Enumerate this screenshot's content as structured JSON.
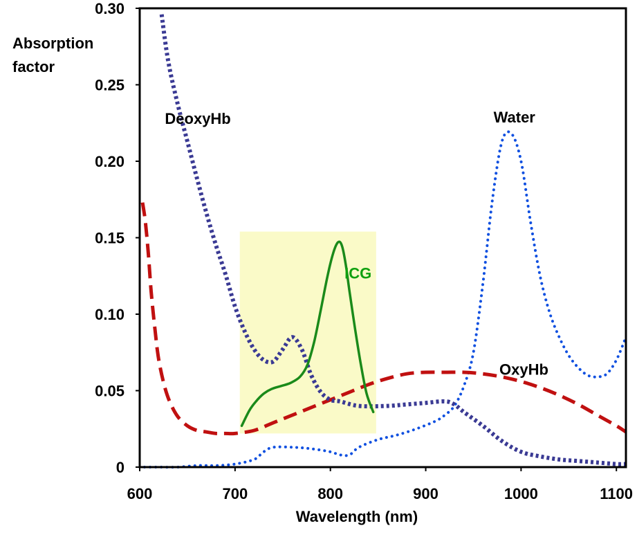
{
  "chart_data": {
    "type": "line",
    "title": "",
    "xlabel": "Wavelength (nm)",
    "ylabel": "Absorption factor",
    "ylabel_lines": [
      "Absorption",
      "factor"
    ],
    "xlim": [
      600,
      1110
    ],
    "ylim": [
      0,
      0.3
    ],
    "x_ticks": [
      600,
      700,
      800,
      900,
      1000,
      1100
    ],
    "x_tick_labels": [
      "600",
      "700",
      "800",
      "900",
      "1000",
      "1100"
    ],
    "y_ticks": [
      0,
      0.05,
      0.1,
      0.15,
      0.2,
      0.25,
      0.3
    ],
    "y_tick_labels": [
      "0",
      "0.05",
      "0.10",
      "0.15",
      "0.20",
      "0.25",
      "0.30"
    ],
    "grid": false,
    "legend": "none",
    "highlight_region": {
      "x": [
        705,
        848
      ],
      "y": [
        0.022,
        0.154
      ],
      "color": "#fafac8"
    },
    "series": [
      {
        "name": "DeoxyHb",
        "color": "#3a3a94",
        "style": "dotted-thick",
        "x": [
          623,
          630,
          640,
          650,
          660,
          670,
          680,
          690,
          700,
          710,
          720,
          730,
          740,
          750,
          760,
          770,
          780,
          790,
          800,
          810,
          830,
          860,
          880,
          900,
          920,
          930,
          940,
          960,
          980,
          1000,
          1020,
          1040,
          1060,
          1080,
          1100,
          1110
        ],
        "y": [
          0.296,
          0.265,
          0.237,
          0.213,
          0.189,
          0.166,
          0.145,
          0.126,
          0.105,
          0.089,
          0.077,
          0.07,
          0.069,
          0.077,
          0.085,
          0.077,
          0.06,
          0.049,
          0.044,
          0.043,
          0.04,
          0.04,
          0.041,
          0.042,
          0.043,
          0.041,
          0.036,
          0.027,
          0.017,
          0.01,
          0.007,
          0.005,
          0.004,
          0.003,
          0.002,
          0.002
        ]
      },
      {
        "name": "OxyHb",
        "color": "#c01010",
        "style": "dashed",
        "x": [
          603,
          606,
          609,
          612,
          616,
          620,
          626,
          632,
          640,
          650,
          660,
          670,
          680,
          690,
          700,
          720,
          740,
          760,
          780,
          800,
          820,
          840,
          860,
          880,
          900,
          920,
          940,
          960,
          980,
          1000,
          1020,
          1040,
          1060,
          1080,
          1100,
          1110
        ],
        "y": [
          0.173,
          0.16,
          0.14,
          0.115,
          0.09,
          0.07,
          0.053,
          0.042,
          0.033,
          0.027,
          0.024,
          0.023,
          0.022,
          0.022,
          0.022,
          0.024,
          0.029,
          0.034,
          0.039,
          0.044,
          0.049,
          0.054,
          0.058,
          0.061,
          0.062,
          0.062,
          0.062,
          0.061,
          0.059,
          0.056,
          0.052,
          0.047,
          0.041,
          0.034,
          0.027,
          0.023
        ]
      },
      {
        "name": "Water",
        "color": "#1050e0",
        "style": "dotted",
        "x": [
          605,
          620,
          640,
          660,
          680,
          700,
          720,
          730,
          740,
          760,
          780,
          800,
          810,
          820,
          830,
          850,
          870,
          890,
          910,
          920,
          930,
          940,
          950,
          960,
          970,
          980,
          990,
          1000,
          1010,
          1020,
          1030,
          1040,
          1050,
          1060,
          1070,
          1080,
          1090,
          1100,
          1110
        ],
        "y": [
          0.0,
          0.0,
          0.0,
          0.001,
          0.001,
          0.002,
          0.005,
          0.01,
          0.013,
          0.013,
          0.012,
          0.01,
          0.008,
          0.008,
          0.013,
          0.018,
          0.021,
          0.025,
          0.03,
          0.034,
          0.04,
          0.053,
          0.075,
          0.12,
          0.175,
          0.213,
          0.218,
          0.2,
          0.16,
          0.125,
          0.101,
          0.085,
          0.073,
          0.065,
          0.06,
          0.059,
          0.061,
          0.07,
          0.085
        ]
      },
      {
        "name": "ICG",
        "color": "#1a8a1a",
        "style": "solid",
        "x": [
          707,
          715,
          722,
          730,
          738,
          748,
          758,
          768,
          776,
          783,
          790,
          797,
          803,
          808,
          812,
          816,
          820,
          826,
          832,
          838,
          845
        ],
        "y": [
          0.027,
          0.037,
          0.043,
          0.048,
          0.051,
          0.053,
          0.055,
          0.059,
          0.067,
          0.082,
          0.103,
          0.125,
          0.14,
          0.147,
          0.145,
          0.133,
          0.115,
          0.09,
          0.067,
          0.048,
          0.036
        ]
      }
    ],
    "annotations": [
      {
        "text": "DeoxyHb",
        "x": 661,
        "y": 0.228,
        "color": "#000000"
      },
      {
        "text": "Water",
        "x": 993,
        "y": 0.229,
        "color": "#000000"
      },
      {
        "text": "ICG",
        "x": 829,
        "y": 0.127,
        "color": "#10a010"
      },
      {
        "text": "OxyHb",
        "x": 1003,
        "y": 0.064,
        "color": "#000000"
      }
    ]
  }
}
